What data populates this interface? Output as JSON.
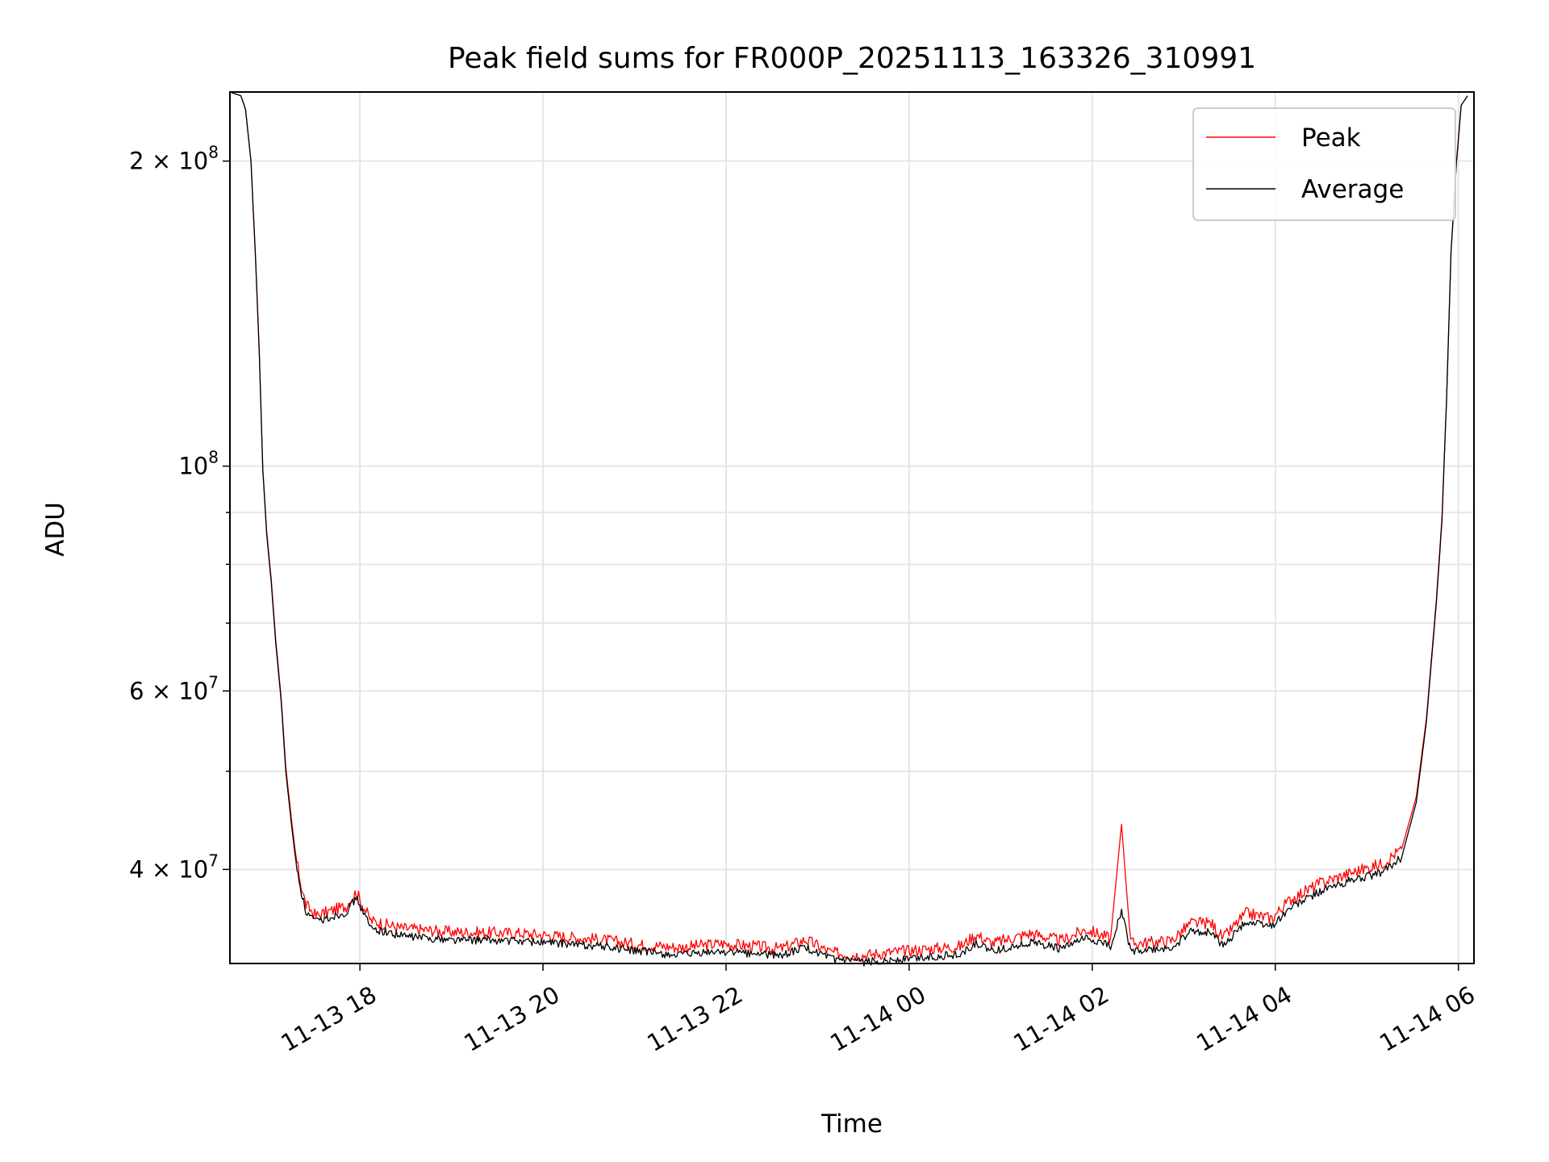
{
  "chart_data": {
    "type": "line",
    "title": "Peak field sums for FR000P_20251113_163326_310991",
    "xlabel": "Time",
    "ylabel": "ADU",
    "x_unit": "hours since 11-13 00:00",
    "xlim": [
      16.58,
      30.17
    ],
    "ylim": [
      32300000,
      234000000
    ],
    "yscale": "log",
    "grid": true,
    "legend_placement": "top-right",
    "x_ticks": [
      {
        "value": 18,
        "label": "11-13 18"
      },
      {
        "value": 20,
        "label": "11-13 20"
      },
      {
        "value": 22,
        "label": "11-13 22"
      },
      {
        "value": 24,
        "label": "11-14 00"
      },
      {
        "value": 26,
        "label": "11-14 02"
      },
      {
        "value": 28,
        "label": "11-14 04"
      },
      {
        "value": 30,
        "label": "11-14 06"
      }
    ],
    "y_ticks": [
      {
        "value": 200000000,
        "mantissa": "2 × 10",
        "exponent": "8"
      },
      {
        "value": 100000000,
        "mantissa": "10",
        "exponent": "8"
      },
      {
        "value": 60000000,
        "mantissa": "6 × 10",
        "exponent": "7"
      },
      {
        "value": 40000000,
        "mantissa": "4 × 10",
        "exponent": "7"
      }
    ],
    "y_minor_ticks": [
      50000000,
      70000000,
      80000000,
      90000000
    ],
    "x": [
      16.58,
      16.7,
      16.75,
      16.81,
      16.86,
      16.9,
      16.94,
      16.98,
      17.03,
      17.08,
      17.14,
      17.19,
      17.25,
      17.3,
      17.36,
      17.41,
      17.52,
      17.68,
      17.85,
      17.96,
      18.01,
      18.12,
      18.45,
      19.0,
      19.76,
      20.63,
      21.07,
      21.5,
      21.95,
      22.6,
      22.87,
      23.15,
      23.48,
      23.9,
      24.57,
      24.73,
      24.9,
      25.33,
      25.66,
      25.93,
      26.2,
      26.32,
      26.42,
      26.86,
      27.08,
      27.3,
      27.43,
      27.68,
      27.96,
      28.17,
      28.5,
      28.83,
      29.16,
      29.38,
      29.54,
      29.65,
      29.76,
      29.82,
      29.87,
      29.92,
      29.98,
      30.03,
      30.1
    ],
    "series": [
      {
        "name": "Peak",
        "color": "#ff0000",
        "values": [
          234000000,
          232000000,
          225000000,
          200000000,
          160000000,
          130000000,
          99000000,
          86500000,
          77500000,
          67500000,
          59000000,
          50500000,
          45000000,
          41200000,
          38500000,
          36900000,
          36000000,
          36400000,
          36800000,
          38000000,
          37200000,
          35600000,
          35000000,
          34700000,
          34600000,
          34100000,
          33700000,
          33500000,
          33800000,
          33400000,
          34100000,
          33100000,
          32900000,
          33200000,
          33600000,
          34500000,
          33800000,
          34600000,
          34000000,
          34900000,
          34200000,
          44300000,
          33800000,
          34000000,
          35400000,
          35400000,
          34200000,
          36200000,
          35800000,
          37400000,
          38800000,
          39700000,
          40500000,
          41900000,
          47200000,
          56300000,
          74000000,
          88800000,
          116000000,
          163000000,
          200000000,
          227000000,
          232000000
        ]
      },
      {
        "name": "Average",
        "color": "#000000",
        "values": [
          234000000,
          232000000,
          225000000,
          200000000,
          160000000,
          130000000,
          99000000,
          86000000,
          77000000,
          67000000,
          58600000,
          50000000,
          44500000,
          40700000,
          38000000,
          36300000,
          35500000,
          35900000,
          36300000,
          37500000,
          36700000,
          35000000,
          34400000,
          34100000,
          34000000,
          33600000,
          33200000,
          32900000,
          33200000,
          32900000,
          33500000,
          32600000,
          32400000,
          32600000,
          33000000,
          33800000,
          33200000,
          33900000,
          33400000,
          34200000,
          33600000,
          36500000,
          33200000,
          33400000,
          34700000,
          34700000,
          33600000,
          35500000,
          35200000,
          36700000,
          38100000,
          39000000,
          39700000,
          41100000,
          46600000,
          55900000,
          73500000,
          88200000,
          116000000,
          163000000,
          200000000,
          227000000,
          232000000
        ]
      }
    ]
  }
}
